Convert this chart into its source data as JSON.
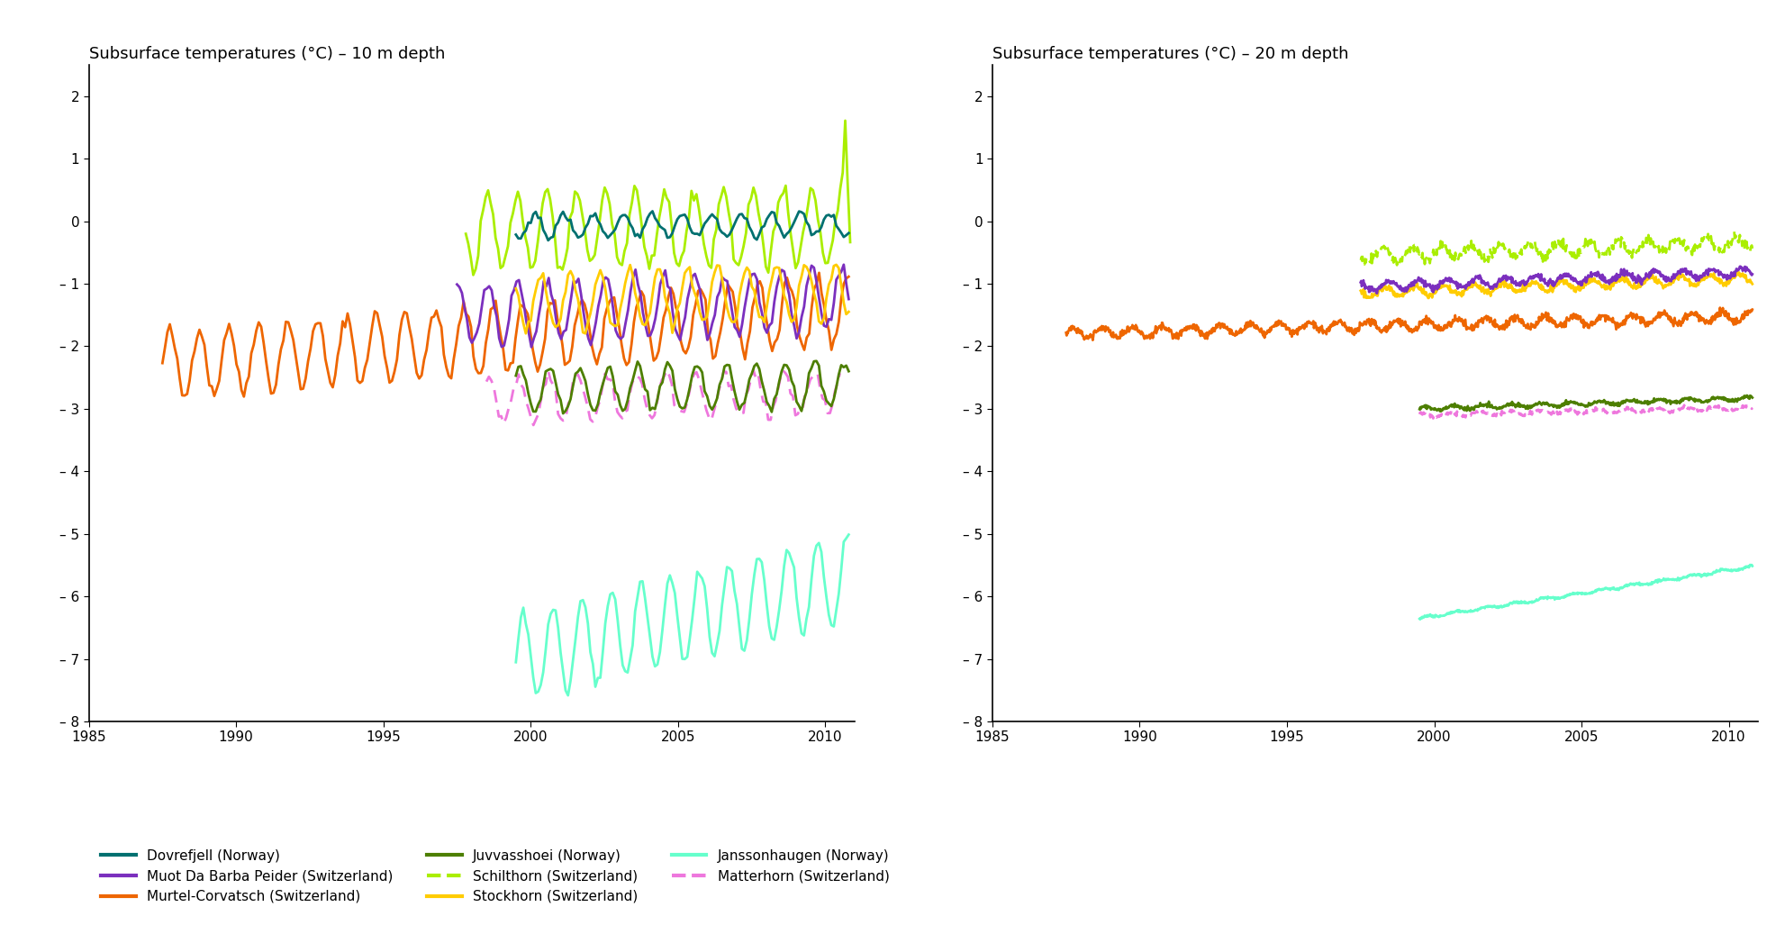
{
  "title_left": "Subsurface temperatures (°C) – 10 m depth",
  "title_right": "Subsurface temperatures (°C) – 20 m depth",
  "xlim": [
    1985,
    2011
  ],
  "ylim": [
    -8,
    2.5
  ],
  "yticks": [
    2,
    1,
    0,
    -1,
    -2,
    -3,
    -4,
    -5,
    -6,
    -7,
    -8
  ],
  "xticks": [
    1985,
    1990,
    1995,
    2000,
    2005,
    2010
  ],
  "colors": {
    "Dovrefjell": "#007070",
    "Juvvasshoei": "#4d7f00",
    "Janssonhaugen": "#66ffcc",
    "Muot_Da_Barba_Peider": "#7b2fbe",
    "Schilthorn": "#aaee00",
    "Matterhorn": "#ee77dd",
    "Murtel_Corvatsch": "#ee6600",
    "Stockhorn": "#ffcc00"
  },
  "series_10m": {
    "Murtel_Corvatsch": {
      "start_year": 1987.5,
      "end_year": 2010.8,
      "base_temp": -2.3,
      "trend": 0.038,
      "amplitude": 0.55,
      "n_per_year": 12,
      "phase": 0.0,
      "noise": 0.06
    },
    "Muot_Da_Barba_Peider": {
      "start_year": 1997.5,
      "end_year": 2010.8,
      "base_temp": -1.5,
      "trend": 0.02,
      "amplitude": 0.5,
      "n_per_year": 12,
      "phase": 0.2,
      "noise": 0.05
    },
    "Schilthorn": {
      "start_year": 1997.8,
      "end_year": 2010.85,
      "base_temp": -0.15,
      "trend": 0.005,
      "amplitude": 0.6,
      "n_per_year": 12,
      "phase": 0.5,
      "noise": 0.07,
      "spike_year": 2010.7,
      "spike_height": 1.3
    },
    "Matterhorn": {
      "start_year": 1998.5,
      "end_year": 2010.5,
      "base_temp": -2.85,
      "trend": 0.01,
      "amplitude": 0.35,
      "n_per_year": 12,
      "phase": 0.15,
      "noise": 0.05
    },
    "Juvvasshoei": {
      "start_year": 1999.5,
      "end_year": 2010.8,
      "base_temp": -2.7,
      "trend": 0.008,
      "amplitude": 0.35,
      "n_per_year": 12,
      "phase": 0.1,
      "noise": 0.04
    },
    "Stockhorn": {
      "start_year": 1999.5,
      "end_year": 2010.8,
      "base_temp": -1.3,
      "trend": 0.015,
      "amplitude": 0.45,
      "n_per_year": 12,
      "phase": 0.4,
      "noise": 0.05
    },
    "Dovrefjell": {
      "start_year": 1999.5,
      "end_year": 2010.8,
      "base_temp": -0.08,
      "trend": 0.002,
      "amplitude": 0.18,
      "n_per_year": 12,
      "phase": 0.6,
      "noise": 0.03
    },
    "Janssonhaugen": {
      "start_year": 1999.5,
      "end_year": 2010.8,
      "base_temp": -7.0,
      "trend": 0.115,
      "amplitude": 0.7,
      "n_per_year": 12,
      "phase": 0.0,
      "noise": 0.05
    }
  },
  "series_20m": {
    "Murtel_Corvatsch": {
      "start_year": 1987.5,
      "end_year": 2010.8,
      "base_temp": -1.8,
      "trend": 0.012,
      "amplitude": 0.08,
      "n_per_year": 52,
      "phase": 0.0,
      "noise": 0.03
    },
    "Muot_Da_Barba_Peider": {
      "start_year": 1997.5,
      "end_year": 2010.8,
      "base_temp": -1.05,
      "trend": 0.018,
      "amplitude": 0.07,
      "n_per_year": 52,
      "phase": 0.3,
      "noise": 0.025
    },
    "Schilthorn": {
      "start_year": 1997.5,
      "end_year": 2010.8,
      "base_temp": -0.55,
      "trend": 0.015,
      "amplitude": 0.1,
      "n_per_year": 52,
      "phase": 0.5,
      "noise": 0.04
    },
    "Stockhorn": {
      "start_year": 1997.5,
      "end_year": 2010.8,
      "base_temp": -1.15,
      "trend": 0.018,
      "amplitude": 0.07,
      "n_per_year": 52,
      "phase": 0.4,
      "noise": 0.025
    },
    "Juvvasshoei": {
      "start_year": 1999.5,
      "end_year": 2010.8,
      "base_temp": -3.0,
      "trend": 0.015,
      "amplitude": 0.03,
      "n_per_year": 52,
      "phase": 0.1,
      "noise": 0.015
    },
    "Matterhorn": {
      "start_year": 1999.5,
      "end_year": 2010.8,
      "base_temp": -3.1,
      "trend": 0.01,
      "amplitude": 0.03,
      "n_per_year": 52,
      "phase": 0.2,
      "noise": 0.015
    },
    "Janssonhaugen": {
      "start_year": 1999.5,
      "end_year": 2010.8,
      "base_temp": -6.35,
      "trend": 0.073,
      "amplitude": 0.02,
      "n_per_year": 52,
      "phase": 0.0,
      "noise": 0.01
    }
  },
  "legend": [
    {
      "label": "Dovrefjell (Norway)",
      "color": "#007070",
      "linestyle": "solid",
      "col": 0,
      "row": 0
    },
    {
      "label": "Juvvasshoei (Norway)",
      "color": "#4d7f00",
      "linestyle": "solid",
      "col": 0,
      "row": 1
    },
    {
      "label": "Janssonhaugen (Norway)",
      "color": "#66ffcc",
      "linestyle": "solid",
      "col": 0,
      "row": 2
    },
    {
      "label": "Muot Da Barba Peider (Switzerland)",
      "color": "#7b2fbe",
      "linestyle": "solid",
      "col": 1,
      "row": 0
    },
    {
      "label": "Schilthorn (Switzerland)",
      "color": "#aaee00",
      "linestyle": "dashed",
      "col": 1,
      "row": 1
    },
    {
      "label": "Matterhorn (Switzerland)",
      "color": "#ee77dd",
      "linestyle": "dashed",
      "col": 1,
      "row": 2
    },
    {
      "label": "Murtel-Corvatsch (Switzerland)",
      "color": "#ee6600",
      "linestyle": "solid",
      "col": 2,
      "row": 0
    },
    {
      "label": "Stockhorn (Switzerland)",
      "color": "#ffcc00",
      "linestyle": "solid",
      "col": 2,
      "row": 1
    }
  ]
}
